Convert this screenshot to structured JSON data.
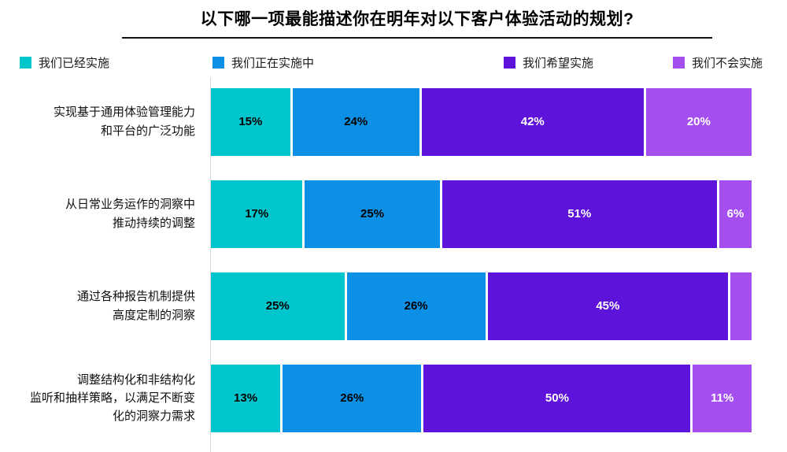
{
  "title": "以下哪一项最能描述你在明年对以下客户体验活动的规划?",
  "legend": {
    "items": [
      {
        "name": "我们已经实施",
        "color": "#00C5CD",
        "text_color": "#000000"
      },
      {
        "name": "我们正在实施中",
        "color": "#0B90E5",
        "text_color": "#000000"
      },
      {
        "name": "我们希望实施",
        "color": "#5E13DB",
        "text_color": "#FFFFFF"
      },
      {
        "name": "我们不会实施",
        "color": "#A44EF0",
        "text_color": "#FFFFFF"
      }
    ]
  },
  "chart_data": {
    "type": "bar",
    "variant": "horizontal-stacked-percent",
    "title": "以下哪一项最能描述你在明年对以下客户体验活动的规划?",
    "legend_position": "top",
    "xlim": [
      0,
      100
    ],
    "grid": false,
    "series": [
      "我们已经实施",
      "我们正在实施中",
      "我们希望实施",
      "我们不会实施"
    ],
    "series_colors": [
      "#00C5CD",
      "#0B90E5",
      "#5E13DB",
      "#A44EF0"
    ],
    "rows": [
      {
        "category": "实现基于通用体验管理能力和平台的广泛功能",
        "label_lines": [
          "实现基于通用体验管理能力",
          "和平台的广泛功能"
        ],
        "values": [
          15,
          24,
          42,
          20
        ],
        "value_labels": [
          "15%",
          "24%",
          "42%",
          "20%"
        ]
      },
      {
        "category": "从日常业务运作的洞察中推动持续的调整",
        "label_lines": [
          "从日常业务运作的洞察中",
          "推动持续的调整"
        ],
        "values": [
          17,
          25,
          51,
          6
        ],
        "value_labels": [
          "17%",
          "25%",
          "51%",
          "6%"
        ]
      },
      {
        "category": "通过各种报告机制提供高度定制的洞察",
        "label_lines": [
          "通过各种报告机制提供",
          "高度定制的洞察"
        ],
        "values": [
          25,
          26,
          45,
          4
        ],
        "value_labels": [
          "25%",
          "26%",
          "45%",
          ""
        ]
      },
      {
        "category": "调整结构化和非结构化监听和抽样策略，以满足不断变化的洞察力需求",
        "label_lines": [
          "调整结构化和非结构化",
          "监听和抽样策略，以满足不断变",
          "化的洞察力需求"
        ],
        "values": [
          13,
          26,
          50,
          11
        ],
        "value_labels": [
          "13%",
          "26%",
          "50%",
          "11%"
        ]
      }
    ]
  }
}
